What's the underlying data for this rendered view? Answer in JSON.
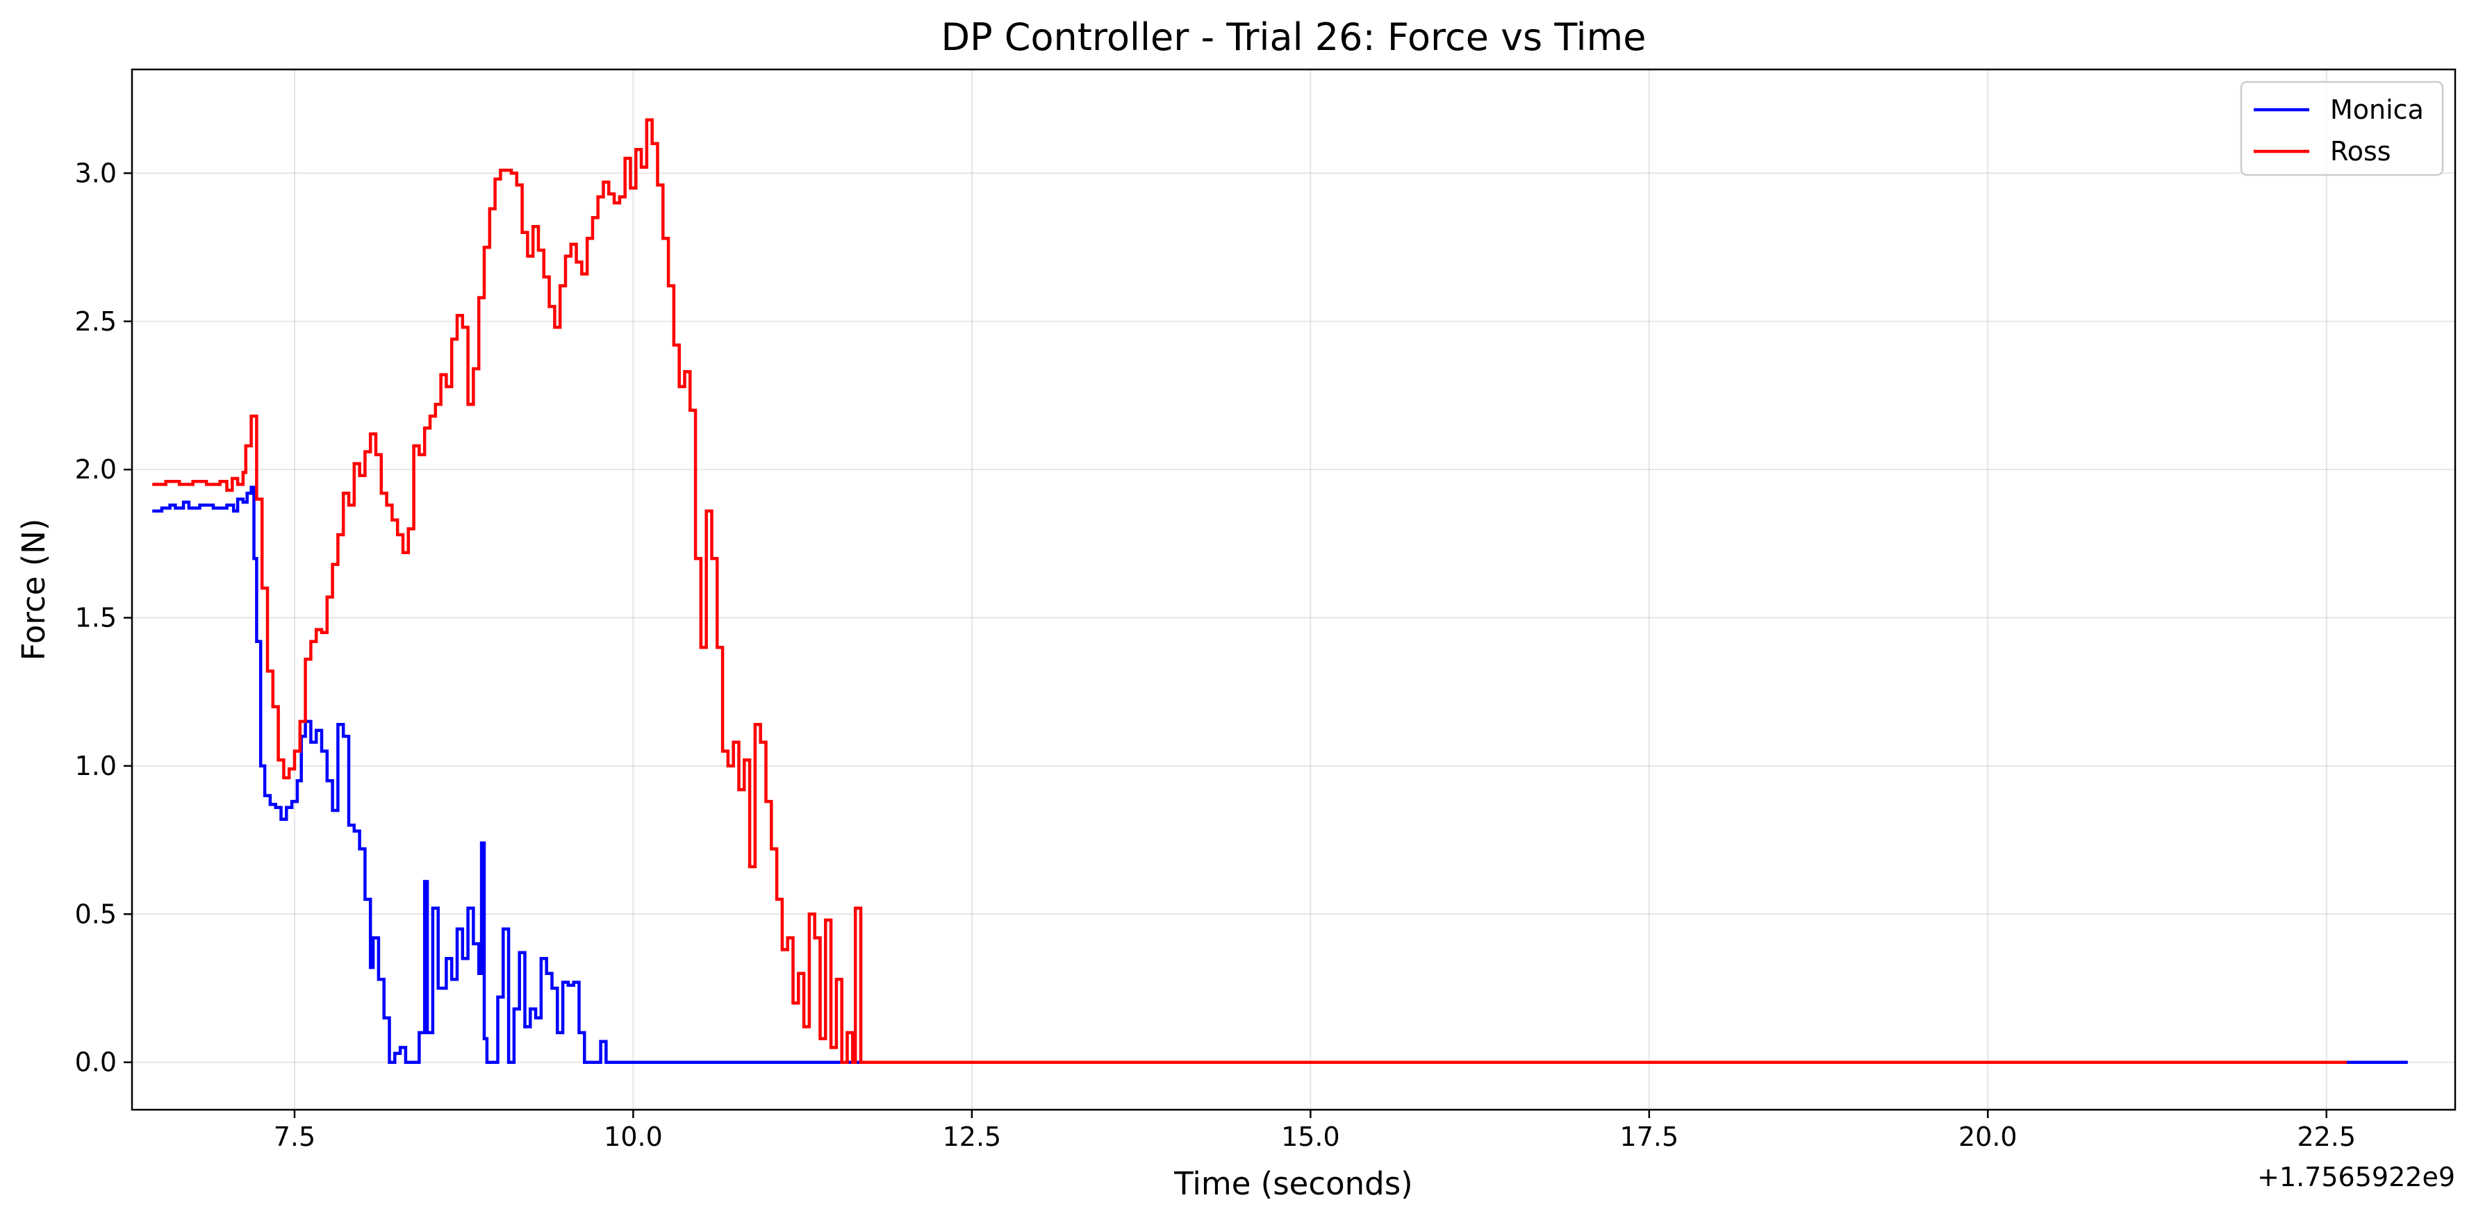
{
  "chart_data": {
    "type": "line",
    "title": "DP Controller - Trial 26: Force vs Time",
    "xlabel": "Time (seconds)",
    "ylabel": "Force (N)",
    "x_offset_label": "+1.7565922e9",
    "xlim": [
      6.3,
      23.45
    ],
    "ylim": [
      -0.16,
      3.35
    ],
    "xticks": [
      7.5,
      10.0,
      12.5,
      15.0,
      17.5,
      20.0,
      22.5
    ],
    "xtick_labels": [
      "7.5",
      "10.0",
      "12.5",
      "15.0",
      "17.5",
      "20.0",
      "22.5"
    ],
    "yticks": [
      0.0,
      0.5,
      1.0,
      1.5,
      2.0,
      2.5,
      3.0
    ],
    "ytick_labels": [
      "0.0",
      "0.5",
      "1.0",
      "1.5",
      "2.0",
      "2.5",
      "3.0"
    ],
    "grid": true,
    "legend_position": "top-right",
    "step": true,
    "series": [
      {
        "name": "Monica",
        "color": "#0000ff",
        "points": [
          [
            6.45,
            1.86
          ],
          [
            6.52,
            1.87
          ],
          [
            6.58,
            1.88
          ],
          [
            6.62,
            1.87
          ],
          [
            6.68,
            1.89
          ],
          [
            6.72,
            1.87
          ],
          [
            6.8,
            1.88
          ],
          [
            6.9,
            1.87
          ],
          [
            7.0,
            1.88
          ],
          [
            7.05,
            1.86
          ],
          [
            7.08,
            1.9
          ],
          [
            7.12,
            1.89
          ],
          [
            7.15,
            1.92
          ],
          [
            7.18,
            1.94
          ],
          [
            7.2,
            1.7
          ],
          [
            7.22,
            1.42
          ],
          [
            7.25,
            1.0
          ],
          [
            7.28,
            0.9
          ],
          [
            7.32,
            0.87
          ],
          [
            7.36,
            0.86
          ],
          [
            7.4,
            0.82
          ],
          [
            7.44,
            0.86
          ],
          [
            7.48,
            0.88
          ],
          [
            7.52,
            0.95
          ],
          [
            7.55,
            1.1
          ],
          [
            7.58,
            1.15
          ],
          [
            7.62,
            1.08
          ],
          [
            7.66,
            1.12
          ],
          [
            7.7,
            1.05
          ],
          [
            7.74,
            0.95
          ],
          [
            7.78,
            0.85
          ],
          [
            7.82,
            1.14
          ],
          [
            7.86,
            1.1
          ],
          [
            7.9,
            0.8
          ],
          [
            7.94,
            0.78
          ],
          [
            7.98,
            0.72
          ],
          [
            8.02,
            0.55
          ],
          [
            8.06,
            0.32
          ],
          [
            8.08,
            0.42
          ],
          [
            8.12,
            0.28
          ],
          [
            8.16,
            0.15
          ],
          [
            8.2,
            0.0
          ],
          [
            8.24,
            0.03
          ],
          [
            8.28,
            0.05
          ],
          [
            8.32,
            0.0
          ],
          [
            8.42,
            0.1
          ],
          [
            8.46,
            0.61
          ],
          [
            8.48,
            0.1
          ],
          [
            8.52,
            0.52
          ],
          [
            8.56,
            0.25
          ],
          [
            8.62,
            0.35
          ],
          [
            8.66,
            0.28
          ],
          [
            8.7,
            0.45
          ],
          [
            8.74,
            0.35
          ],
          [
            8.78,
            0.52
          ],
          [
            8.82,
            0.4
          ],
          [
            8.86,
            0.3
          ],
          [
            8.88,
            0.74
          ],
          [
            8.9,
            0.08
          ],
          [
            8.92,
            0.0
          ],
          [
            8.96,
            0.0
          ],
          [
            9.0,
            0.22
          ],
          [
            9.04,
            0.45
          ],
          [
            9.08,
            0.0
          ],
          [
            9.12,
            0.18
          ],
          [
            9.16,
            0.37
          ],
          [
            9.2,
            0.12
          ],
          [
            9.24,
            0.18
          ],
          [
            9.28,
            0.15
          ],
          [
            9.32,
            0.35
          ],
          [
            9.36,
            0.3
          ],
          [
            9.4,
            0.25
          ],
          [
            9.44,
            0.1
          ],
          [
            9.48,
            0.27
          ],
          [
            9.52,
            0.26
          ],
          [
            9.56,
            0.27
          ],
          [
            9.6,
            0.1
          ],
          [
            9.64,
            0.0
          ],
          [
            9.72,
            0.0
          ],
          [
            9.76,
            0.07
          ],
          [
            9.8,
            0.0
          ],
          [
            11.5,
            0.0
          ],
          [
            23.1,
            0.0
          ]
        ]
      },
      {
        "name": "Ross",
        "color": "#ff0000",
        "points": [
          [
            6.45,
            1.95
          ],
          [
            6.55,
            1.96
          ],
          [
            6.65,
            1.95
          ],
          [
            6.75,
            1.96
          ],
          [
            6.85,
            1.95
          ],
          [
            6.95,
            1.96
          ],
          [
            7.0,
            1.93
          ],
          [
            7.04,
            1.97
          ],
          [
            7.08,
            1.95
          ],
          [
            7.12,
            1.99
          ],
          [
            7.14,
            2.08
          ],
          [
            7.18,
            2.18
          ],
          [
            7.22,
            1.9
          ],
          [
            7.26,
            1.6
          ],
          [
            7.3,
            1.32
          ],
          [
            7.34,
            1.2
          ],
          [
            7.38,
            1.02
          ],
          [
            7.42,
            0.96
          ],
          [
            7.46,
            0.99
          ],
          [
            7.5,
            1.05
          ],
          [
            7.54,
            1.15
          ],
          [
            7.58,
            1.36
          ],
          [
            7.62,
            1.42
          ],
          [
            7.66,
            1.46
          ],
          [
            7.7,
            1.45
          ],
          [
            7.74,
            1.57
          ],
          [
            7.78,
            1.68
          ],
          [
            7.82,
            1.78
          ],
          [
            7.86,
            1.92
          ],
          [
            7.9,
            1.88
          ],
          [
            7.94,
            2.02
          ],
          [
            7.98,
            1.98
          ],
          [
            8.02,
            2.06
          ],
          [
            8.06,
            2.12
          ],
          [
            8.1,
            2.05
          ],
          [
            8.14,
            1.92
          ],
          [
            8.18,
            1.88
          ],
          [
            8.22,
            1.83
          ],
          [
            8.26,
            1.78
          ],
          [
            8.3,
            1.72
          ],
          [
            8.34,
            1.8
          ],
          [
            8.38,
            2.08
          ],
          [
            8.42,
            2.05
          ],
          [
            8.46,
            2.14
          ],
          [
            8.5,
            2.18
          ],
          [
            8.54,
            2.22
          ],
          [
            8.58,
            2.32
          ],
          [
            8.62,
            2.28
          ],
          [
            8.66,
            2.44
          ],
          [
            8.7,
            2.52
          ],
          [
            8.74,
            2.48
          ],
          [
            8.78,
            2.22
          ],
          [
            8.82,
            2.34
          ],
          [
            8.86,
            2.58
          ],
          [
            8.9,
            2.75
          ],
          [
            8.94,
            2.88
          ],
          [
            8.98,
            2.98
          ],
          [
            9.02,
            3.01
          ],
          [
            9.1,
            3.0
          ],
          [
            9.14,
            2.96
          ],
          [
            9.18,
            2.8
          ],
          [
            9.22,
            2.72
          ],
          [
            9.26,
            2.82
          ],
          [
            9.3,
            2.74
          ],
          [
            9.34,
            2.65
          ],
          [
            9.38,
            2.55
          ],
          [
            9.42,
            2.48
          ],
          [
            9.46,
            2.62
          ],
          [
            9.5,
            2.72
          ],
          [
            9.54,
            2.76
          ],
          [
            9.58,
            2.7
          ],
          [
            9.62,
            2.66
          ],
          [
            9.66,
            2.78
          ],
          [
            9.7,
            2.85
          ],
          [
            9.74,
            2.92
          ],
          [
            9.78,
            2.97
          ],
          [
            9.82,
            2.93
          ],
          [
            9.86,
            2.9
          ],
          [
            9.9,
            2.92
          ],
          [
            9.94,
            3.05
          ],
          [
            9.98,
            2.95
          ],
          [
            10.02,
            3.08
          ],
          [
            10.06,
            3.02
          ],
          [
            10.1,
            3.18
          ],
          [
            10.14,
            3.1
          ],
          [
            10.18,
            2.96
          ],
          [
            10.22,
            2.78
          ],
          [
            10.26,
            2.62
          ],
          [
            10.3,
            2.42
          ],
          [
            10.34,
            2.28
          ],
          [
            10.38,
            2.33
          ],
          [
            10.42,
            2.2
          ],
          [
            10.46,
            1.7
          ],
          [
            10.5,
            1.4
          ],
          [
            10.54,
            1.86
          ],
          [
            10.58,
            1.7
          ],
          [
            10.62,
            1.4
          ],
          [
            10.66,
            1.05
          ],
          [
            10.7,
            1.0
          ],
          [
            10.74,
            1.08
          ],
          [
            10.78,
            0.92
          ],
          [
            10.82,
            1.02
          ],
          [
            10.86,
            0.66
          ],
          [
            10.9,
            1.14
          ],
          [
            10.94,
            1.08
          ],
          [
            10.98,
            0.88
          ],
          [
            11.02,
            0.72
          ],
          [
            11.06,
            0.55
          ],
          [
            11.1,
            0.38
          ],
          [
            11.14,
            0.42
          ],
          [
            11.18,
            0.2
          ],
          [
            11.22,
            0.3
          ],
          [
            11.26,
            0.12
          ],
          [
            11.3,
            0.5
          ],
          [
            11.34,
            0.42
          ],
          [
            11.38,
            0.08
          ],
          [
            11.42,
            0.48
          ],
          [
            11.46,
            0.05
          ],
          [
            11.5,
            0.28
          ],
          [
            11.54,
            0.0
          ],
          [
            11.58,
            0.1
          ],
          [
            11.62,
            0.0
          ],
          [
            11.64,
            0.52
          ],
          [
            11.68,
            0.0
          ],
          [
            22.65,
            0.0
          ]
        ]
      }
    ]
  }
}
